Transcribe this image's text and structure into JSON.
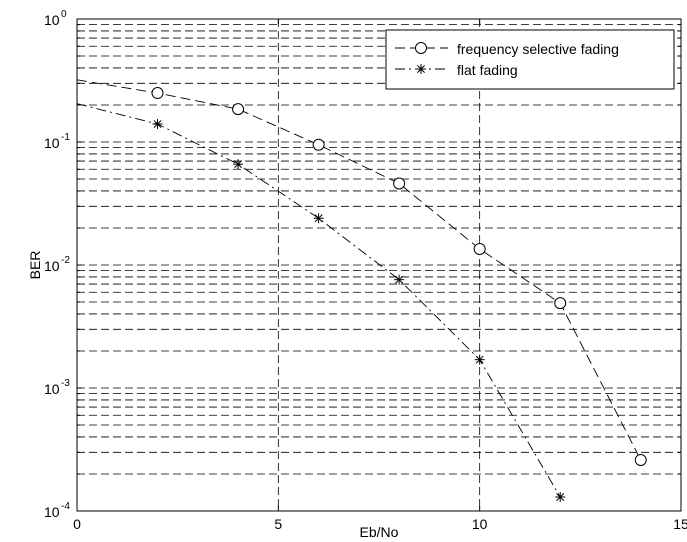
{
  "chart_data": {
    "type": "line",
    "xlabel": "Eb/No",
    "ylabel": "BER",
    "xlim": [
      0,
      15
    ],
    "ylim": [
      0.0001,
      1
    ],
    "yscale": "log",
    "grid": true,
    "legend_position": "top-right",
    "x_ticks": [
      "0",
      "5",
      "10",
      "15"
    ],
    "y_ticks": [
      {
        "base": "10",
        "exp": "-4"
      },
      {
        "base": "10",
        "exp": "-3"
      },
      {
        "base": "10",
        "exp": "-2"
      },
      {
        "base": "10",
        "exp": "-1"
      },
      {
        "base": "10",
        "exp": "0"
      }
    ],
    "series": [
      {
        "name": "frequency selective fading",
        "marker": "circle",
        "line_style": "dashed",
        "color": "#000000",
        "points": [
          [
            2,
            0.25
          ],
          [
            4,
            0.185
          ],
          [
            6,
            0.095
          ],
          [
            8,
            0.046
          ],
          [
            10,
            0.0135
          ],
          [
            12,
            0.0049
          ],
          [
            14,
            0.00026
          ]
        ],
        "fit_line": [
          [
            0,
            0.32
          ],
          [
            2,
            0.25
          ],
          [
            4,
            0.185
          ],
          [
            6,
            0.095
          ],
          [
            8,
            0.046
          ],
          [
            10,
            0.0135
          ],
          [
            12,
            0.0049
          ],
          [
            14,
            0.00026
          ]
        ]
      },
      {
        "name": "flat fading",
        "marker": "asterisk",
        "line_style": "dash-dot",
        "color": "#000000",
        "points": [
          [
            2,
            0.14
          ],
          [
            4,
            0.066
          ],
          [
            6,
            0.024
          ],
          [
            8,
            0.0076
          ],
          [
            10,
            0.0017
          ],
          [
            12,
            0.00013
          ]
        ],
        "fit_line": [
          [
            0,
            0.205
          ],
          [
            2,
            0.14
          ],
          [
            4,
            0.066
          ],
          [
            6,
            0.024
          ],
          [
            8,
            0.0076
          ],
          [
            10,
            0.0017
          ],
          [
            12,
            0.00013
          ]
        ]
      }
    ]
  }
}
